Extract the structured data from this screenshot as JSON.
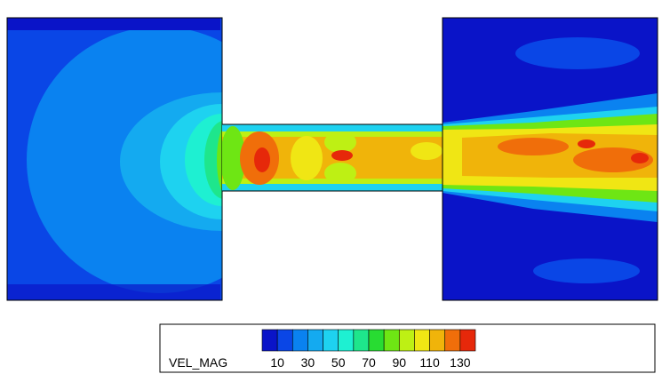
{
  "legend": {
    "label": "VEL_MAG",
    "levels": [
      0,
      10,
      20,
      30,
      40,
      50,
      60,
      70,
      80,
      90,
      100,
      110,
      120,
      130,
      140
    ],
    "colors": [
      "#0a14c8",
      "#0a46e6",
      "#0a82f0",
      "#14aaf0",
      "#1ed2f0",
      "#1ef0d2",
      "#1ee68c",
      "#28dc32",
      "#6ee614",
      "#bef014",
      "#f0e614",
      "#f0b40a",
      "#f06e0a",
      "#e6280a"
    ],
    "ticks": [
      10,
      30,
      50,
      70,
      90,
      110,
      130
    ]
  }
}
